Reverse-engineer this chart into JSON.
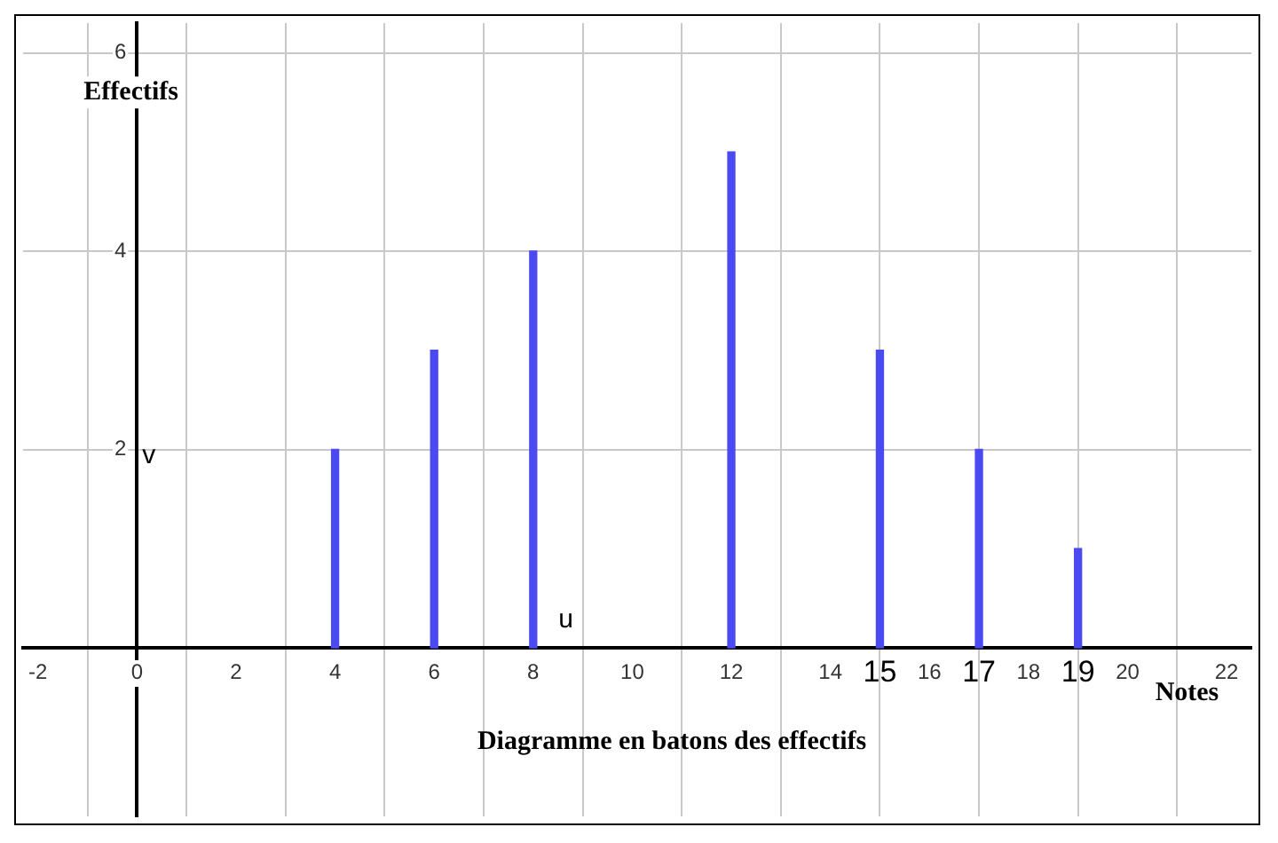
{
  "chart_data": {
    "type": "bar",
    "title": "Diagramme en batons des effectifs",
    "xlabel": "Notes",
    "ylabel": "Effectifs",
    "x": [
      4,
      6,
      8,
      12,
      15,
      17,
      19
    ],
    "values": [
      2,
      3,
      4,
      5,
      3,
      2,
      1
    ],
    "color": "#4a4af0",
    "xlim": [
      -2.3,
      22.5
    ],
    "ylim": [
      -1.7,
      6.3
    ],
    "xticks": [
      -2,
      0,
      2,
      4,
      6,
      8,
      10,
      12,
      14,
      16,
      18,
      20,
      22
    ],
    "yticks": [
      2,
      4,
      6
    ],
    "grid": true,
    "legend": false,
    "annotations": [
      "u",
      "v",
      {
        "text": "15",
        "x": 15,
        "y": 0
      },
      {
        "text": "17",
        "x": 17,
        "y": 0
      },
      {
        "text": "19",
        "x": 19,
        "y": 0
      }
    ]
  }
}
